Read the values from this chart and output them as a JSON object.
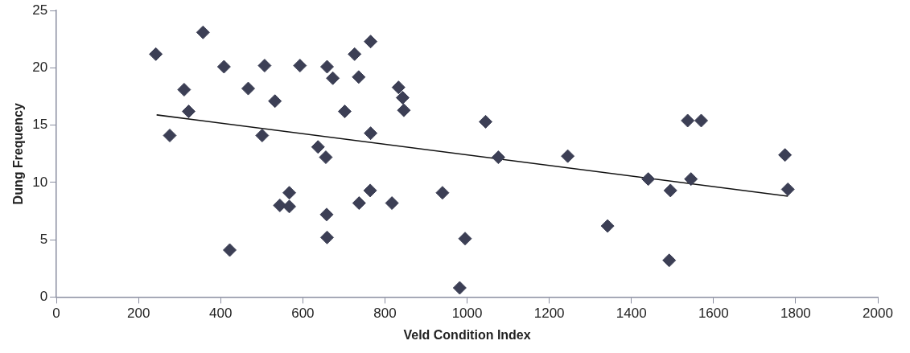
{
  "chart_data": {
    "type": "scatter",
    "xlabel": "Veld Condition Index",
    "ylabel": "Dung Frequency",
    "xlim": [
      0,
      2000
    ],
    "xticks": [
      0,
      200,
      400,
      600,
      800,
      1000,
      1200,
      1400,
      1600,
      1800,
      2000
    ],
    "ylim": [
      0,
      25
    ],
    "yticks": [
      0,
      5,
      10,
      15,
      20,
      25
    ],
    "grid": false,
    "legend": false,
    "marker": "diamond",
    "series": [
      {
        "color": "#3c3f55",
        "x": [
          242,
          276,
          311,
          322,
          357,
          408,
          422,
          467,
          507,
          501,
          532,
          593,
          567,
          544,
          567,
          659,
          673,
          637,
          656,
          658,
          659,
          702,
          726,
          736,
          765,
          765,
          737,
          764,
          817,
          833,
          843,
          846,
          940,
          982,
          995,
          1045,
          1076,
          1245,
          1342,
          1441,
          1492,
          1495,
          1537,
          1570,
          1545,
          1774,
          1781
        ],
        "values": [
          21.2,
          14.1,
          18.1,
          16.2,
          23.1,
          20.1,
          4.1,
          18.2,
          20.2,
          14.1,
          17.1,
          20.2,
          9.1,
          8.0,
          7.9,
          20.1,
          19.1,
          13.1,
          12.2,
          7.2,
          5.2,
          16.2,
          21.2,
          19.2,
          22.3,
          14.3,
          8.2,
          9.3,
          8.2,
          18.3,
          17.4,
          16.3,
          9.1,
          0.8,
          5.1,
          15.3,
          12.2,
          12.3,
          6.2,
          10.3,
          3.2,
          9.3,
          15.4,
          15.4,
          10.3,
          12.4,
          9.4
        ]
      },
      {
        "type": "line",
        "color": "#111111",
        "marker": "none",
        "line_style": "solid",
        "x": [
          244,
          1781
        ],
        "values": [
          15.9,
          8.8
        ]
      }
    ]
  }
}
